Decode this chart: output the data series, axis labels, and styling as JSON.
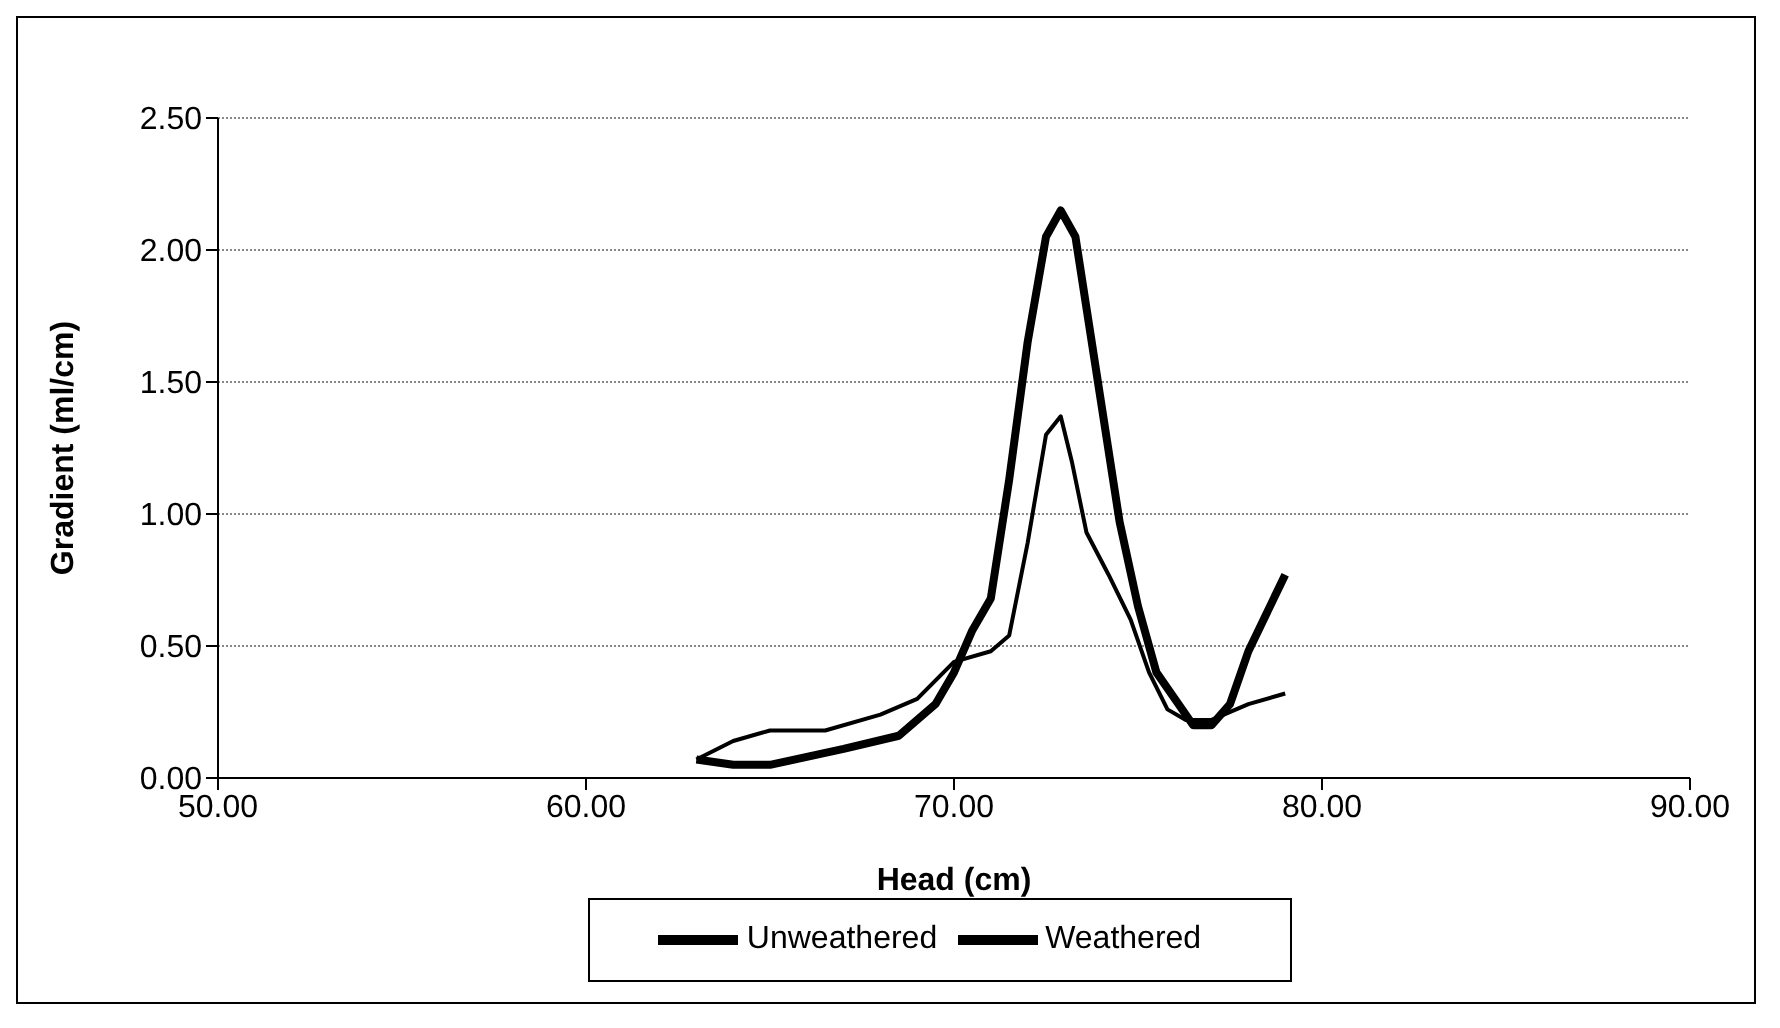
{
  "chart_data": {
    "type": "line",
    "xlabel": "Head (cm)",
    "ylabel": "Gradient (ml/cm)",
    "xlim": [
      50,
      90
    ],
    "xticks": [
      {
        "value": 50,
        "label": "50.00"
      },
      {
        "value": 60,
        "label": "60.00"
      },
      {
        "value": 70,
        "label": "70.00"
      },
      {
        "value": 80,
        "label": "80.00"
      },
      {
        "value": 90,
        "label": "90.00"
      }
    ],
    "ylim": [
      0,
      2.5
    ],
    "yticks": [
      {
        "value": 0,
        "label": "0.00"
      },
      {
        "value": 0.5,
        "label": "0.50"
      },
      {
        "value": 1,
        "label": "1.00"
      },
      {
        "value": 1.5,
        "label": "1.50"
      },
      {
        "value": 2,
        "label": "2.00"
      },
      {
        "value": 2.5,
        "label": "2.50"
      }
    ],
    "grid": "y",
    "legend": "bottom",
    "marker": "none",
    "line_style": "solid",
    "series": [
      {
        "name": "Unweathered",
        "color": "#000000",
        "x": [
          63,
          64,
          65,
          67,
          68.5,
          69.5,
          70,
          70.5,
          71,
          71.5,
          72,
          72.5,
          72.9,
          73.3,
          73.8,
          74.5,
          75,
          75.5,
          76.5,
          77,
          77.5,
          78,
          79
        ],
        "values": [
          0.07,
          0.05,
          0.05,
          0.11,
          0.16,
          0.28,
          0.4,
          0.56,
          0.68,
          1.13,
          1.65,
          2.05,
          2.15,
          2.05,
          1.6,
          0.97,
          0.65,
          0.4,
          0.2,
          0.2,
          0.28,
          0.48,
          0.77
        ]
      },
      {
        "name": "Weathered",
        "color": "#000000",
        "x": [
          63,
          64,
          65,
          66.5,
          68,
          69,
          70,
          71,
          71.5,
          72,
          72.5,
          72.9,
          73.2,
          73.6,
          74.2,
          74.8,
          75.3,
          75.8,
          76.3,
          77,
          78,
          79
        ],
        "values": [
          0.07,
          0.14,
          0.18,
          0.18,
          0.24,
          0.3,
          0.44,
          0.48,
          0.54,
          0.89,
          1.3,
          1.37,
          1.2,
          0.93,
          0.77,
          0.6,
          0.4,
          0.26,
          0.22,
          0.22,
          0.28,
          0.32
        ]
      }
    ]
  }
}
